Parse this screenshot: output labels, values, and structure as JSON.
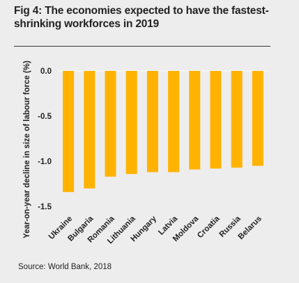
{
  "chart_data": {
    "type": "bar",
    "title": "Fig 4: The economies expected to have the fastest-shrinking workforces in 2019",
    "xlabel": "",
    "ylabel": "Year-on-year decline in size of labour force (%)",
    "categories": [
      "Ukraine",
      "Bulgaria",
      "Romania",
      "Lithuania",
      "Hungary",
      "Latvia",
      "Moldova",
      "Croatia",
      "Russia",
      "Belarus"
    ],
    "values": [
      -1.34,
      -1.3,
      -1.17,
      -1.14,
      -1.12,
      -1.12,
      -1.09,
      -1.08,
      -1.07,
      -1.05
    ],
    "ylim": [
      -1.5,
      0
    ],
    "yticks": [
      0,
      -0.5,
      -1.0,
      -1.5
    ],
    "ytick_labels": [
      "0.0",
      "-0.5",
      "-1.0",
      "-1.5"
    ],
    "grid": false,
    "legend": "none",
    "bar_color": "#ffb300",
    "source": "Source: World Bank, 2018"
  }
}
